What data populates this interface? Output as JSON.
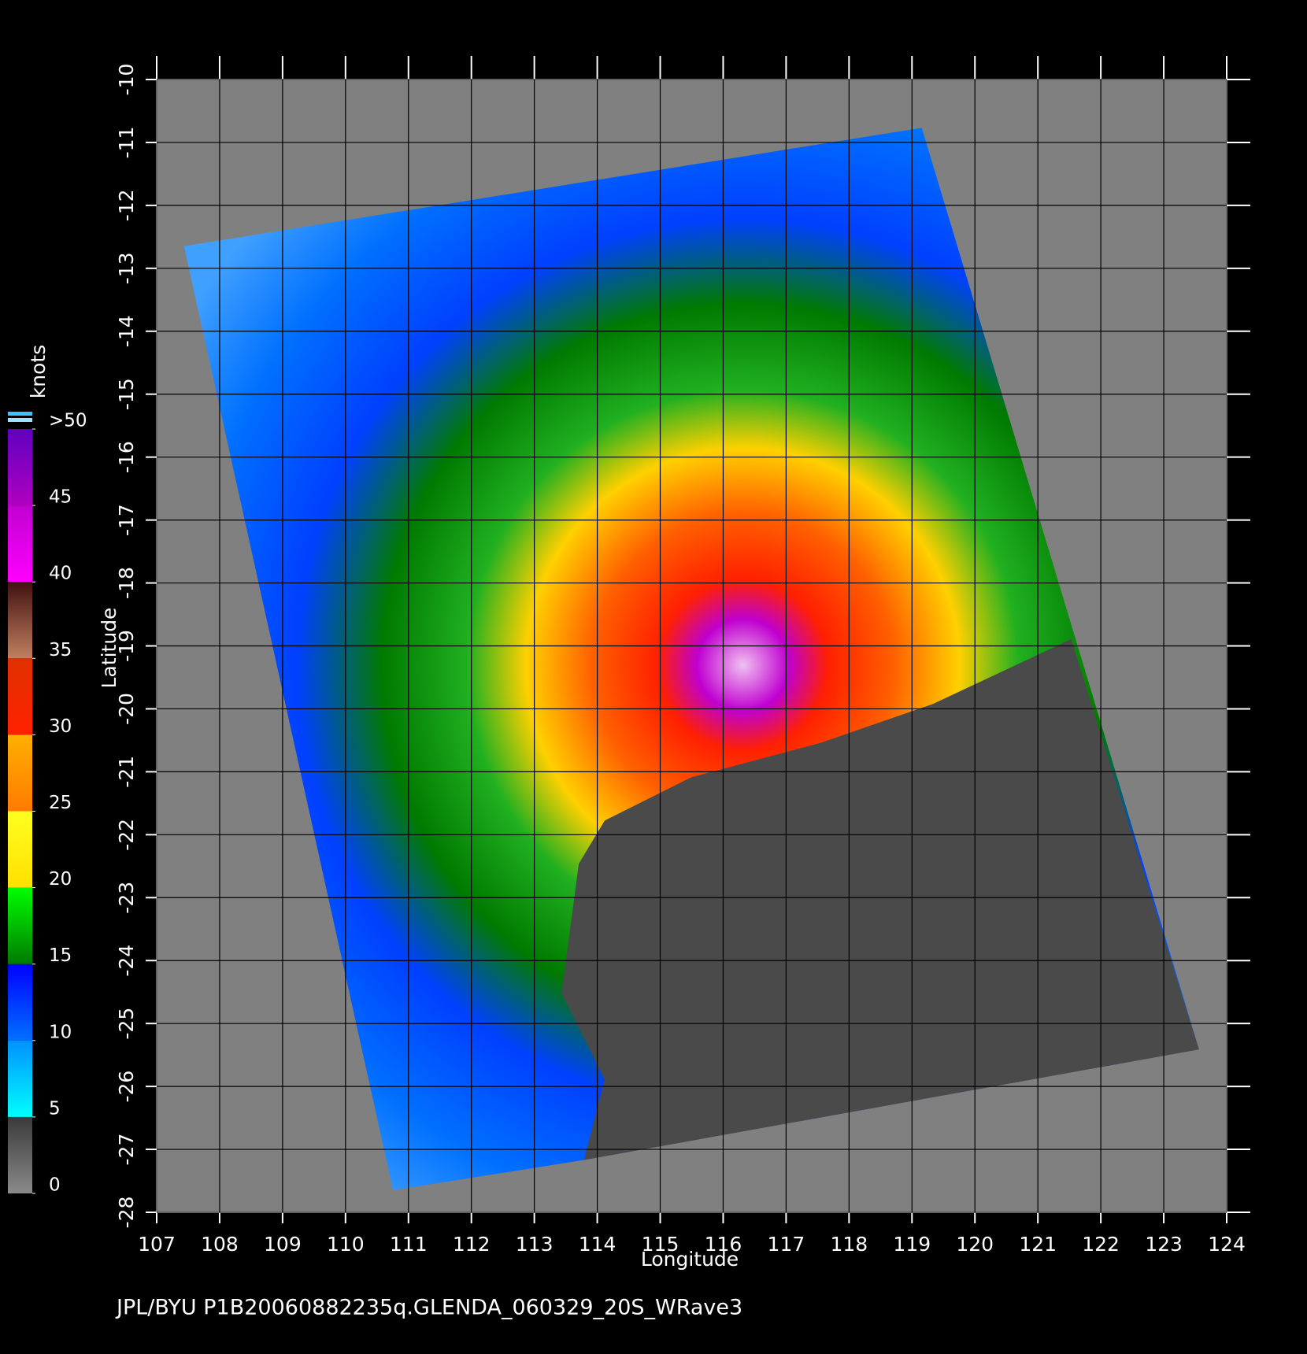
{
  "chart_data": {
    "type": "map",
    "xlabel": "Longitude",
    "ylabel": "Latitude",
    "xlim": [
      107,
      124
    ],
    "ylim": [
      -28,
      -10
    ],
    "xticks": [
      107,
      108,
      109,
      110,
      111,
      112,
      113,
      114,
      115,
      116,
      117,
      118,
      119,
      120,
      121,
      122,
      123,
      124
    ],
    "yticks": [
      -10,
      -11,
      -12,
      -13,
      -14,
      -15,
      -16,
      -17,
      -18,
      -19,
      -20,
      -21,
      -22,
      -23,
      -24,
      -25,
      -26,
      -27,
      -28
    ],
    "grid": true,
    "colorbar": {
      "label": "knots",
      "lim": [
        0,
        50
      ],
      "ticks": [
        0,
        5,
        10,
        15,
        20,
        25,
        30,
        35,
        40,
        45,
        {
          "value": 50,
          "label": ">50"
        }
      ],
      "colors": [
        [
          "#8a8a8a",
          "#3a3a3a"
        ],
        [
          "#00ffff",
          "#0090ff"
        ],
        [
          "#0070ff",
          "#0000ff"
        ],
        [
          "#007a00",
          "#00ff00"
        ],
        [
          "#ffe000",
          "#ffff20"
        ],
        [
          "#ff7a00",
          "#ffb000"
        ],
        [
          "#ff2000",
          "#e03000"
        ],
        [
          "#c08060",
          "#401010"
        ],
        [
          "#ff00ff",
          "#c000d0"
        ],
        [
          "#b000c0",
          "#6000c0"
        ]
      ]
    },
    "footer": "JPL/BYU  P1B20060882235q.GLENDA_060329_20S_WRave3"
  }
}
